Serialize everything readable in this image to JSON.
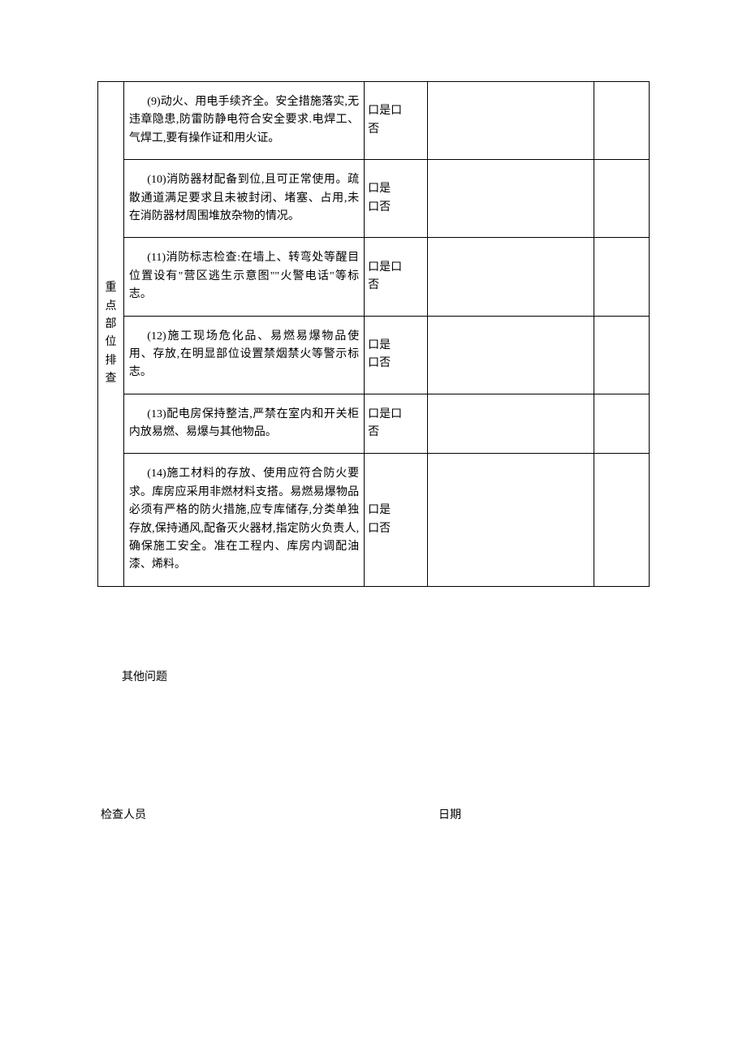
{
  "category_label": "重点部位排查",
  "rows": [
    {
      "content": "(9)动火、用电手续齐全。安全措施落实,无违章隐患,防雷防静电符合安全要求.电焊工、气焊工,要有操作证和用火证。",
      "check_yes": "口是口",
      "check_no": "否",
      "two_line": false
    },
    {
      "content": "(10)消防器材配备到位,且可正常使用。疏散通道满足要求且未被封闭、堵塞、占用,未在消防器材周围堆放杂物的情况。",
      "check_yes": "口是",
      "check_no": "口否",
      "two_line": true
    },
    {
      "content": "(11)消防标志检查:在墙上、转弯处等醒目位置设有\"营区逃生示意图\"\"火警电话\"等标志。",
      "check_yes": "口是口",
      "check_no": "否",
      "two_line": false
    },
    {
      "content": "(12)施工现场危化品、易燃易爆物品使用、存放,在明显部位设置禁烟禁火等警示标志。",
      "check_yes": "口是",
      "check_no": "口否",
      "two_line": true
    },
    {
      "content": "(13)配电房保持整洁,严禁在室内和开关柜内放易燃、易爆与其他物品。",
      "check_yes": "口是口",
      "check_no": "否",
      "two_line": false
    },
    {
      "content": "(14)施工材料的存放、使用应符合防火要求。库房应采用非燃材料支搭。易燃易爆物品必须有严格的防火措施,应专库储存,分类单独存放,保持通风,配备灭火器材,指定防火负责人,确保施工安全。准在工程内、库房内调配油漆、烯料。",
      "check_yes": "口是",
      "check_no": "口否",
      "two_line": true
    }
  ],
  "other_issues_label": "其他问题",
  "inspector_label": "检查人员",
  "date_label": "日期",
  "colors": {
    "text": "#000000",
    "border": "#000000",
    "background": "#ffffff"
  },
  "font_sizes": {
    "body": 14
  }
}
